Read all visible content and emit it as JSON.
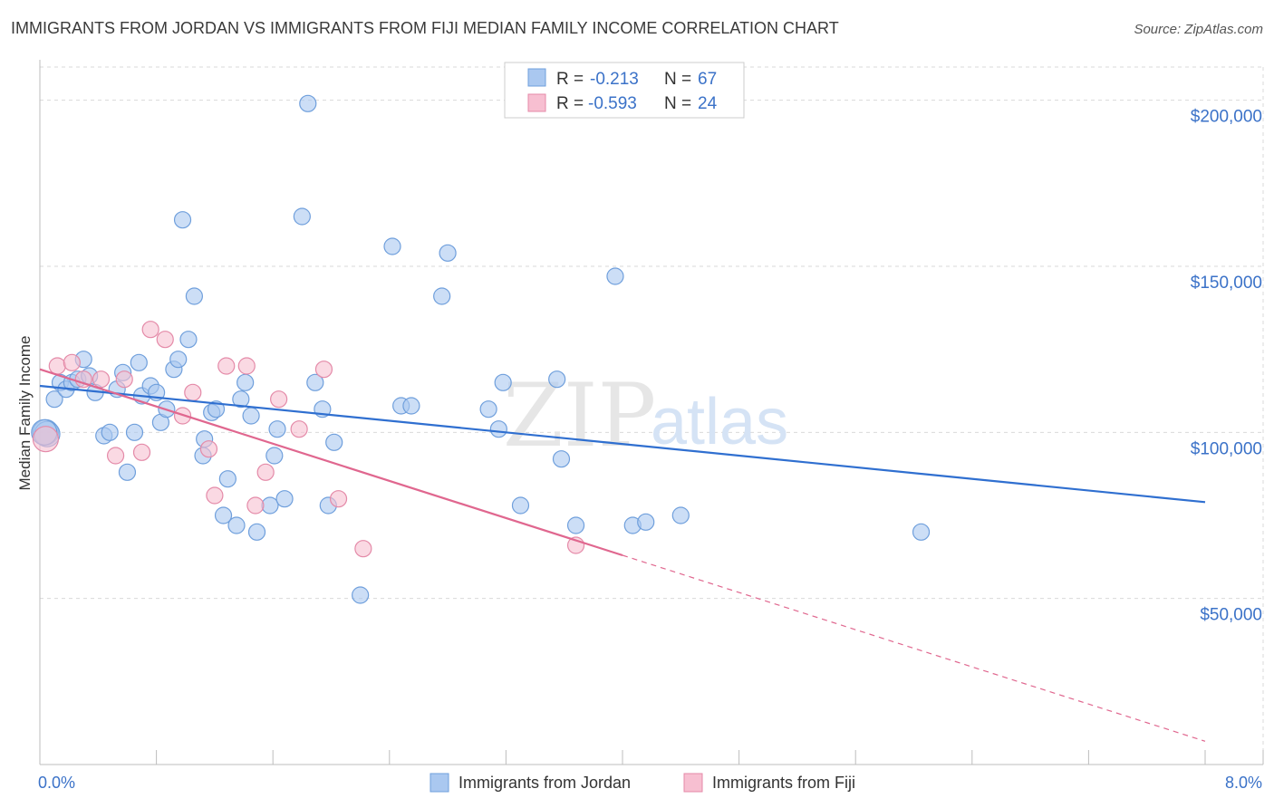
{
  "header": {
    "title": "IMMIGRANTS FROM JORDAN VS IMMIGRANTS FROM FIJI MEDIAN FAMILY INCOME CORRELATION CHART",
    "source": "Source: ZipAtlas.com"
  },
  "watermark": {
    "zip": "ZIP",
    "atlas": "atlas"
  },
  "stats_box": {
    "rows": [
      {
        "r_label": "R =",
        "r_value": "-0.213",
        "n_label": "N =",
        "n_value": "67",
        "color": "#aac8f0"
      },
      {
        "r_label": "R =",
        "r_value": "-0.593",
        "n_label": "N =",
        "n_value": "24",
        "color": "#f5b8cc"
      }
    ]
  },
  "colors": {
    "jordan_fill": "#aac8f0",
    "jordan_stroke": "#6f9fdc",
    "jordan_line": "#2f6fd0",
    "fiji_fill": "#f7bfd1",
    "fiji_stroke": "#e48aa8",
    "fiji_line": "#e0678f",
    "grid": "#d9d9d9",
    "tick_label": "#3b72c8"
  },
  "chart_data": {
    "type": "scatter",
    "title": "IMMIGRANTS FROM JORDAN VS IMMIGRANTS FROM FIJI MEDIAN FAMILY INCOME CORRELATION CHART",
    "xlabel": "",
    "ylabel": "Median Family Income",
    "xlim": [
      0,
      8
    ],
    "ylim": [
      0,
      210000
    ],
    "x_ticks": [
      {
        "value": 0,
        "label": "0.0%"
      },
      {
        "value": 8,
        "label": "8.0%"
      }
    ],
    "x_minor_ticks": [
      0.8,
      1.6,
      2.4,
      3.2,
      4.0,
      4.8,
      5.6,
      6.4,
      7.2,
      8.0
    ],
    "y_ticks": [
      {
        "value": 50000,
        "label": "$50,000"
      },
      {
        "value": 100000,
        "label": "$100,000"
      },
      {
        "value": 150000,
        "label": "$150,000"
      },
      {
        "value": 200000,
        "label": "$200,000"
      }
    ],
    "grid": true,
    "legend_position": "bottom-center",
    "series": [
      {
        "name": "Immigrants from Jordan",
        "r": -0.213,
        "n": 67,
        "trend": {
          "x0": 0.0,
          "y0": 114000,
          "x1": 8.0,
          "y1": 79000,
          "dashed_from": null
        },
        "points": [
          [
            0.04,
            100000
          ],
          [
            0.05,
            99500
          ],
          [
            0.1,
            110000
          ],
          [
            0.14,
            115000
          ],
          [
            0.18,
            113000
          ],
          [
            0.22,
            115000
          ],
          [
            0.26,
            116000
          ],
          [
            0.3,
            122000
          ],
          [
            0.34,
            117000
          ],
          [
            0.38,
            112000
          ],
          [
            0.44,
            99000
          ],
          [
            0.48,
            100000
          ],
          [
            0.53,
            113000
          ],
          [
            0.57,
            118000
          ],
          [
            0.6,
            88000
          ],
          [
            0.65,
            100000
          ],
          [
            0.68,
            121000
          ],
          [
            0.7,
            111000
          ],
          [
            0.76,
            114000
          ],
          [
            0.8,
            112000
          ],
          [
            0.83,
            103000
          ],
          [
            0.87,
            107000
          ],
          [
            0.92,
            119000
          ],
          [
            0.95,
            122000
          ],
          [
            0.98,
            164000
          ],
          [
            1.02,
            128000
          ],
          [
            1.06,
            141000
          ],
          [
            1.12,
            93000
          ],
          [
            1.13,
            98000
          ],
          [
            1.18,
            106000
          ],
          [
            1.21,
            107000
          ],
          [
            1.26,
            75000
          ],
          [
            1.29,
            86000
          ],
          [
            1.35,
            72000
          ],
          [
            1.38,
            110000
          ],
          [
            1.41,
            115000
          ],
          [
            1.45,
            105000
          ],
          [
            1.49,
            70000
          ],
          [
            1.58,
            78000
          ],
          [
            1.61,
            93000
          ],
          [
            1.63,
            101000
          ],
          [
            1.68,
            80000
          ],
          [
            1.8,
            165000
          ],
          [
            1.84,
            199000
          ],
          [
            1.89,
            115000
          ],
          [
            1.94,
            107000
          ],
          [
            1.98,
            78000
          ],
          [
            2.02,
            97000
          ],
          [
            2.2,
            51000
          ],
          [
            2.42,
            156000
          ],
          [
            2.48,
            108000
          ],
          [
            2.55,
            108000
          ],
          [
            2.76,
            141000
          ],
          [
            2.8,
            154000
          ],
          [
            3.08,
            107000
          ],
          [
            3.15,
            101000
          ],
          [
            3.18,
            115000
          ],
          [
            3.3,
            78000
          ],
          [
            3.55,
            116000
          ],
          [
            3.58,
            92000
          ],
          [
            3.68,
            72000
          ],
          [
            3.95,
            147000
          ],
          [
            4.07,
            72000
          ],
          [
            4.16,
            73000
          ],
          [
            4.4,
            75000
          ],
          [
            6.05,
            70000
          ],
          [
            0.03,
            100000
          ]
        ]
      },
      {
        "name": "Immigrants from Fiji",
        "r": -0.593,
        "n": 24,
        "trend": {
          "x0": 0.0,
          "y0": 119000,
          "x1": 8.0,
          "y1": 7000,
          "dashed_from": 4.0
        },
        "points": [
          [
            0.04,
            98000
          ],
          [
            0.12,
            120000
          ],
          [
            0.22,
            121000
          ],
          [
            0.3,
            116000
          ],
          [
            0.42,
            116000
          ],
          [
            0.52,
            93000
          ],
          [
            0.58,
            116000
          ],
          [
            0.7,
            94000
          ],
          [
            0.76,
            131000
          ],
          [
            0.86,
            128000
          ],
          [
            0.98,
            105000
          ],
          [
            1.05,
            112000
          ],
          [
            1.16,
            95000
          ],
          [
            1.2,
            81000
          ],
          [
            1.28,
            120000
          ],
          [
            1.42,
            120000
          ],
          [
            1.48,
            78000
          ],
          [
            1.55,
            88000
          ],
          [
            1.64,
            110000
          ],
          [
            1.78,
            101000
          ],
          [
            1.95,
            119000
          ],
          [
            2.05,
            80000
          ],
          [
            2.22,
            65000
          ],
          [
            3.68,
            66000
          ]
        ]
      }
    ]
  }
}
